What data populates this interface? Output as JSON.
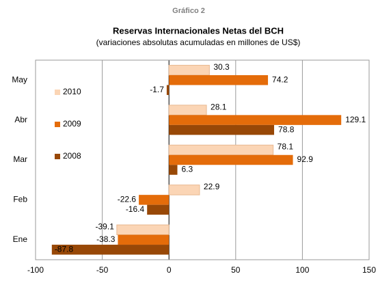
{
  "chart_data": {
    "type": "hbar",
    "header": "Gráfico 2",
    "title": "Reservas Internacionales Netas del BCH",
    "subtitle": "(variaciones absolutas acumuladas en millones de US$)",
    "categories": [
      "May",
      "Abr",
      "Mar",
      "Feb",
      "Ene"
    ],
    "series": [
      {
        "name": "2010",
        "color": "#fbd5b5",
        "values": [
          30.3,
          28.1,
          78.1,
          22.9,
          -39.1
        ]
      },
      {
        "name": "2009",
        "color": "#e46c0a",
        "values": [
          74.2,
          129.1,
          92.9,
          -22.6,
          -38.3
        ]
      },
      {
        "name": "2008",
        "color": "#984807",
        "values": [
          -1.7,
          78.8,
          6.3,
          -16.4,
          -87.8
        ]
      }
    ],
    "xlim": [
      -100,
      150
    ],
    "xticks": [
      -100,
      -50,
      0,
      50,
      100,
      150
    ],
    "grid": true,
    "legend": "left"
  }
}
